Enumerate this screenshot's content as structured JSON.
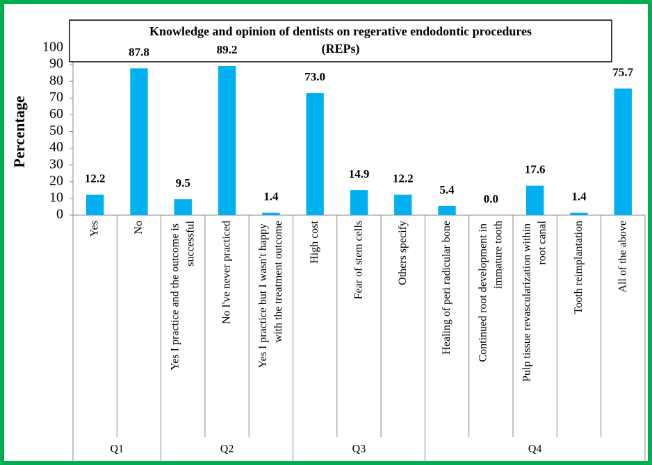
{
  "chart_data": {
    "type": "bar",
    "title": "Knowledge and opinion of dentists on regerative endodontic procedures",
    "subtitle": "(REPs)",
    "y_label": "Percentage",
    "color": "#00b0f0",
    "ylim": [
      0,
      100
    ],
    "yticks": [
      0,
      10,
      20,
      30,
      40,
      50,
      60,
      70,
      80,
      90,
      100
    ],
    "grid": false,
    "groups": [
      {
        "label": "Q1",
        "categories": [
          "Yes",
          "No"
        ],
        "values": [
          12.2,
          87.8
        ],
        "value_labels": [
          "12.2",
          "87.8"
        ]
      },
      {
        "label": "Q2",
        "categories": [
          "Yes I practice and the outcome is successful",
          "No I've never practiced",
          "Yes I practice but I wasn't happy with the treatment outcome"
        ],
        "values": [
          9.5,
          89.2,
          1.4
        ],
        "value_labels": [
          "9.5",
          "89.2",
          "1.4"
        ]
      },
      {
        "label": "Q3",
        "categories": [
          "High cost",
          "Fear of stem cells",
          "Others specify"
        ],
        "values": [
          73.0,
          14.9,
          12.2
        ],
        "value_labels": [
          "73.0",
          "14.9",
          "12.2"
        ]
      },
      {
        "label": "Q4",
        "categories": [
          "Healing of peri radicular bone",
          "Continued root development in immature tooth",
          "Pulp tissue revascularization within root canal",
          "Tooth reimplantation",
          "All of the above"
        ],
        "values": [
          5.4,
          0.0,
          17.6,
          1.4,
          75.7
        ],
        "value_labels": [
          "5.4",
          "0.0",
          "17.6",
          "1.4",
          "75.7"
        ]
      }
    ]
  }
}
